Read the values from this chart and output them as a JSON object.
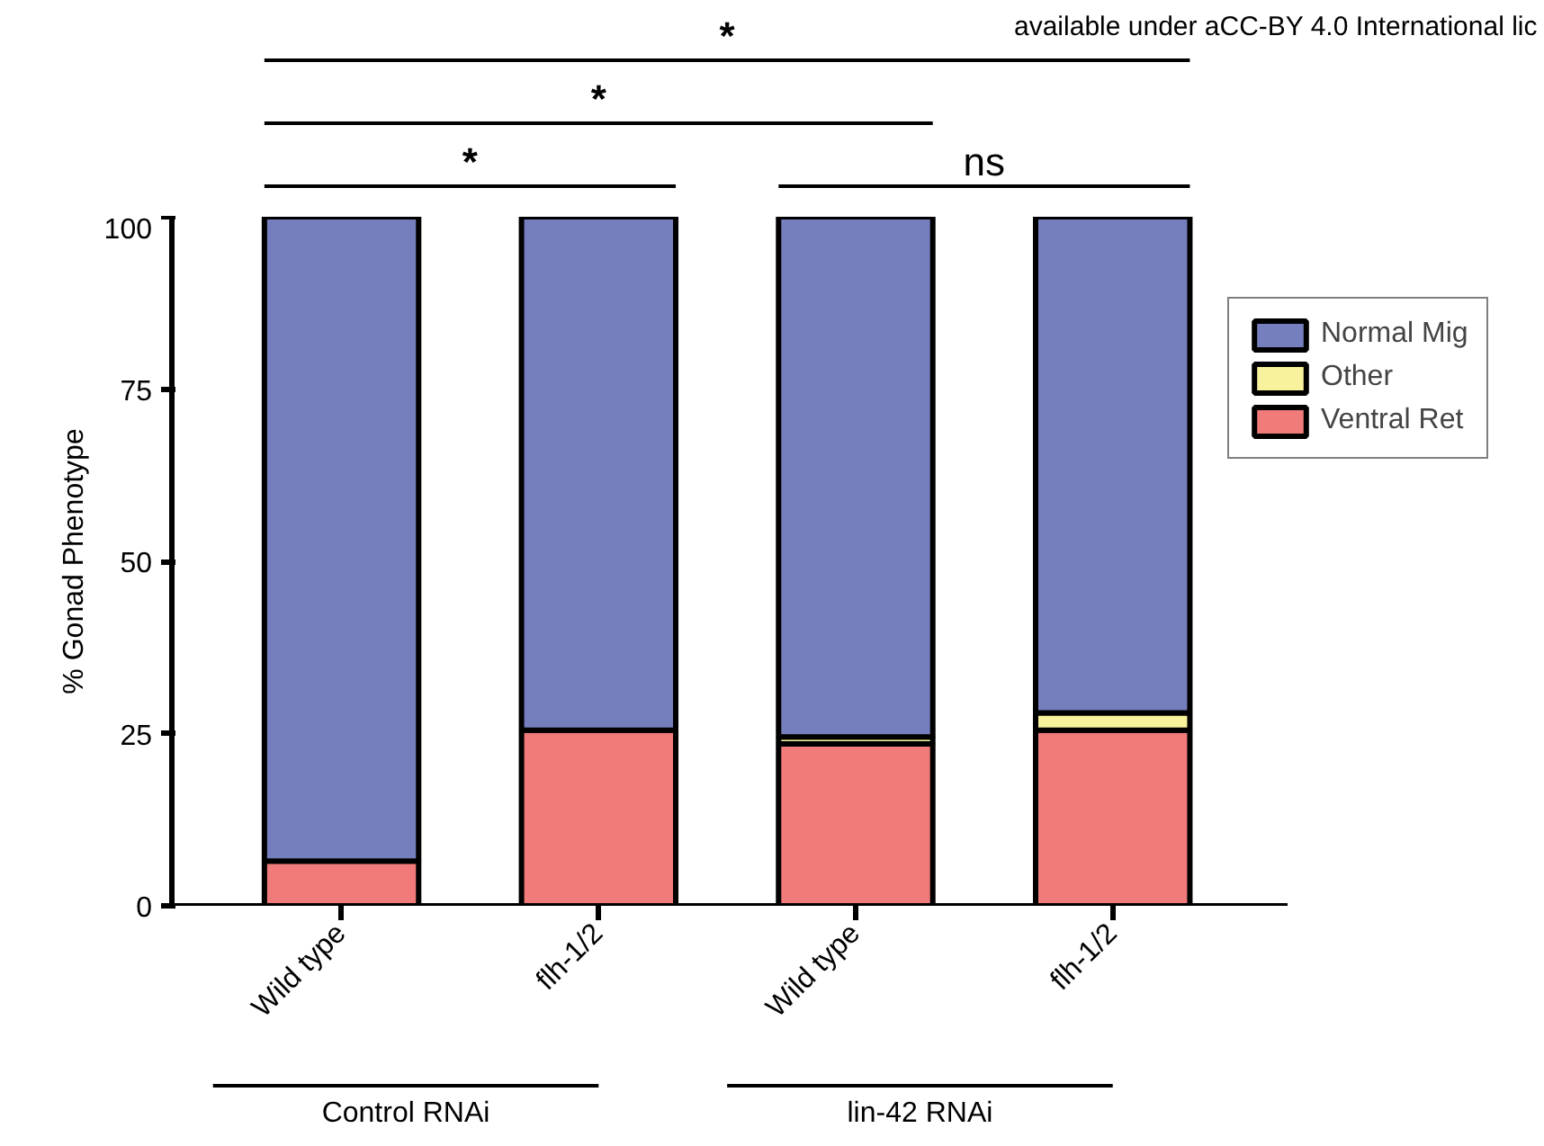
{
  "chart_data": {
    "type": "bar",
    "stacked": true,
    "ylabel": "% Gonad Phenotype",
    "categories": [
      "Wild type",
      "flh-1/2",
      "Wild type",
      "flh-1/2"
    ],
    "series": [
      {
        "name": "Ventral Ret",
        "color": "#f07b7a",
        "values": [
          6.5,
          25.5,
          23.5,
          25.5
        ]
      },
      {
        "name": "Other",
        "color": "#f9f29c",
        "values": [
          null,
          null,
          1,
          2.5
        ]
      },
      {
        "name": "Normal Mig",
        "color": "#767fbd",
        "values": [
          93.5,
          74.5,
          75.5,
          72
        ]
      }
    ],
    "ylim": [
      0,
      100
    ],
    "yticks": [
      0,
      25,
      50,
      75,
      100
    ],
    "grid": false,
    "legend": "right",
    "annotations": [
      "*",
      "*",
      "*",
      "ns",
      "Control RNAi",
      "lin-42 RNAi",
      "available under aCC-BY 4.0 International lic"
    ]
  }
}
